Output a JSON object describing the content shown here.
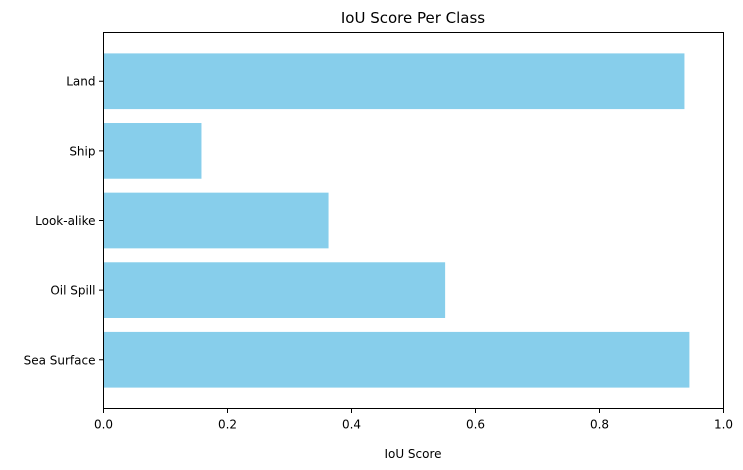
{
  "chart_data": {
    "type": "bar",
    "orientation": "horizontal",
    "title": "IoU Score Per Class",
    "xlabel": "IoU Score",
    "ylabel": "",
    "xlim": [
      0,
      1
    ],
    "x_ticks": [
      0.0,
      0.2,
      0.4,
      0.6,
      0.8,
      1.0
    ],
    "x_tick_labels": [
      "0.0",
      "0.2",
      "0.4",
      "0.6",
      "0.8",
      "1.0"
    ],
    "categories": [
      "Sea Surface",
      "Oil Spill",
      "Look-alike",
      "Ship",
      "Land"
    ],
    "values": [
      0.945,
      0.551,
      0.363,
      0.158,
      0.937
    ],
    "bar_color": "#87ceeb",
    "grid": false,
    "legend": "none"
  }
}
